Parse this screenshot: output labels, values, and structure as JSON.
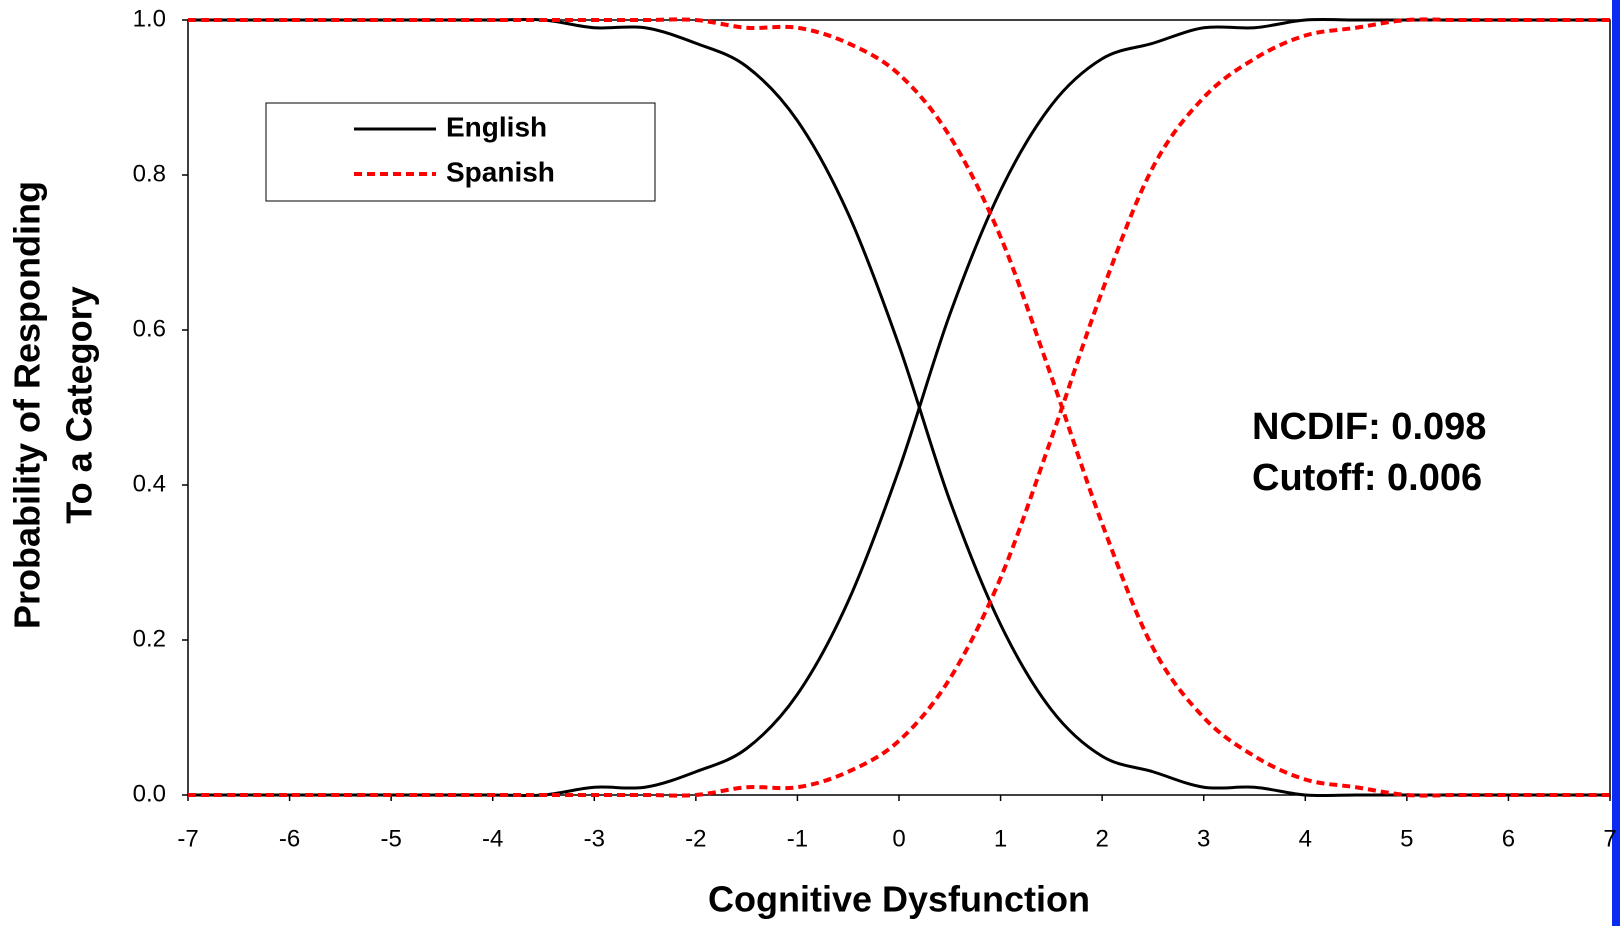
{
  "chart_data": {
    "type": "line",
    "x_label": "Cognitive Dysfunction",
    "y_label": [
      "Probability of Responding",
      "To a Category"
    ],
    "annotations": [
      "NCDIF: 0.098",
      "Cutoff: 0.006"
    ],
    "x": [
      -7,
      -6.5,
      -6,
      -5.5,
      -5,
      -4.5,
      -4,
      -3.5,
      -3,
      -2.5,
      -2,
      -1.5,
      -1,
      -0.5,
      0,
      0.5,
      1,
      1.5,
      2,
      2.5,
      3,
      3.5,
      4,
      4.5,
      5,
      5.5,
      6,
      6.5,
      7
    ],
    "series": [
      {
        "name": "English",
        "color": "#000000",
        "dashed": false,
        "values": [
          [
            1,
            1,
            1,
            1,
            1,
            1,
            1,
            1,
            0.99,
            0.99,
            0.97,
            0.94,
            0.87,
            0.75,
            0.58,
            0.38,
            0.22,
            0.11,
            0.05,
            0.03,
            0.01,
            0.01,
            0,
            0,
            0,
            0,
            0,
            0,
            0
          ],
          [
            0,
            0,
            0,
            0,
            0,
            0,
            0,
            0,
            0.01,
            0.01,
            0.03,
            0.06,
            0.13,
            0.25,
            0.42,
            0.62,
            0.78,
            0.89,
            0.95,
            0.97,
            0.99,
            0.99,
            1,
            1,
            1,
            1,
            1,
            1,
            1
          ]
        ]
      },
      {
        "name": "Spanish",
        "color": "#ff0000",
        "dashed": true,
        "values": [
          [
            1,
            1,
            1,
            1,
            1,
            1,
            1,
            1,
            1,
            1,
            1,
            0.99,
            0.99,
            0.97,
            0.93,
            0.85,
            0.72,
            0.54,
            0.35,
            0.19,
            0.1,
            0.05,
            0.02,
            0.01,
            0,
            0,
            0,
            0,
            0
          ],
          [
            0,
            0,
            0,
            0,
            0,
            0,
            0,
            0,
            0,
            0,
            0,
            0.01,
            0.01,
            0.03,
            0.07,
            0.15,
            0.28,
            0.46,
            0.65,
            0.81,
            0.9,
            0.95,
            0.98,
            0.99,
            1,
            1,
            1,
            1,
            1
          ]
        ]
      }
    ],
    "xlim": [
      -7,
      7
    ],
    "xticks": [
      -7,
      -6,
      -5,
      -4,
      -3,
      -2,
      -1,
      0,
      1,
      2,
      3,
      4,
      5,
      6,
      7
    ],
    "ylim": [
      0,
      1
    ],
    "yticks": [
      {
        "value": 0,
        "label": "0.0"
      },
      0.2,
      0.4,
      0.6,
      0.8,
      {
        "value": 1,
        "label": "1.0"
      }
    ],
    "grid": false,
    "legend": "upper left"
  }
}
